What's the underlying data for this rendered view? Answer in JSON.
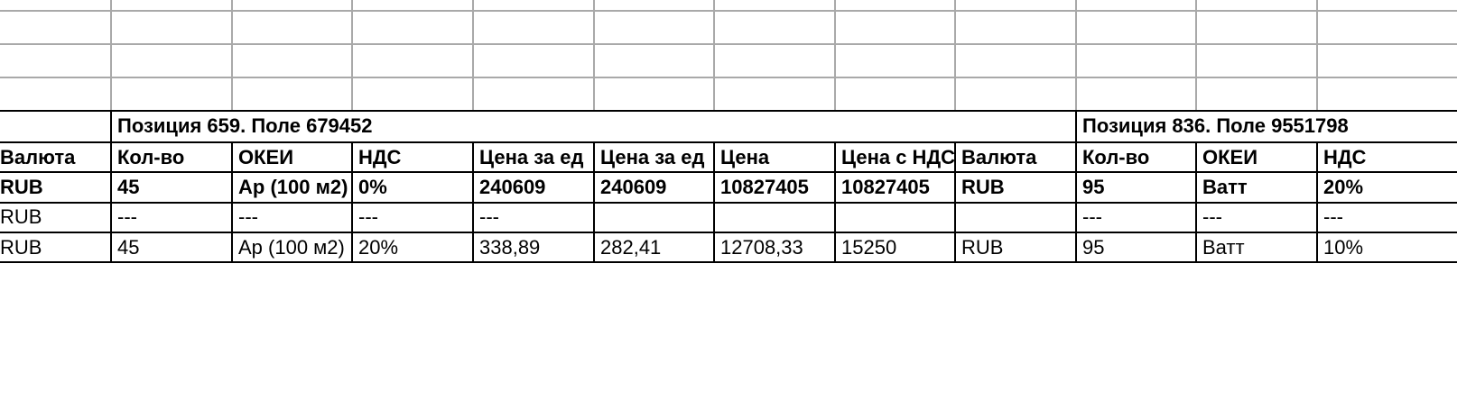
{
  "positions": [
    {
      "title": "Позиция 659. Поле 679452"
    },
    {
      "title": "Позиция 836. Поле 9551798"
    }
  ],
  "header": [
    "Валюта",
    "Кол-во",
    "ОКЕИ",
    "НДС",
    "Цена за ед",
    "Цена за ед",
    "Цена",
    "Цена с НДС",
    "Валюта",
    "Кол-во",
    "ОКЕИ",
    "НДС"
  ],
  "rows": [
    {
      "bold": true,
      "cells": [
        "RUB",
        "45",
        "Ар (100 м2)",
        "0%",
        "240609",
        "240609",
        "10827405",
        "10827405",
        "RUB",
        "95",
        "Ватт",
        "20%"
      ]
    },
    {
      "bold": false,
      "cells": [
        "RUB",
        "---",
        "---",
        "---",
        "---",
        "",
        "",
        "",
        "",
        "---",
        "---",
        "---"
      ]
    },
    {
      "bold": false,
      "cells": [
        "RUB",
        "45",
        "Ар (100 м2)",
        "20%",
        "338,89",
        "282,41",
        "12708,33",
        "15250",
        "RUB",
        "95",
        "Ватт",
        "10%"
      ]
    }
  ]
}
